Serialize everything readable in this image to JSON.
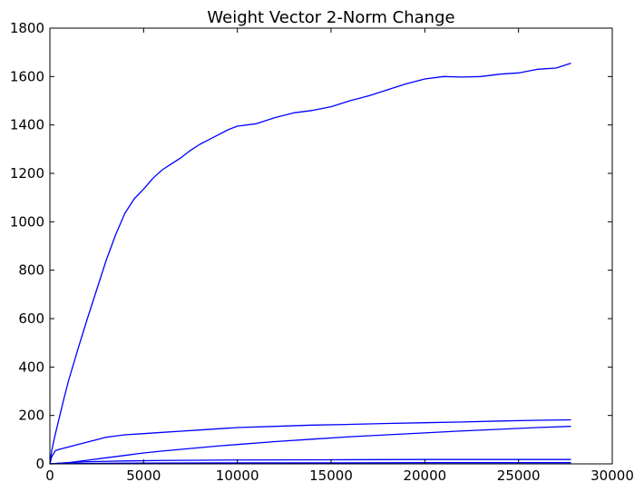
{
  "chart_data": {
    "type": "line",
    "title": "Weight Vector 2-Norm Change",
    "xlabel": "",
    "ylabel": "",
    "xlim": [
      0,
      30000
    ],
    "ylim": [
      0,
      1800
    ],
    "xticks": [
      "0",
      "5000",
      "10000",
      "15000",
      "20000",
      "25000",
      "30000"
    ],
    "yticks": [
      "0",
      "200",
      "400",
      "600",
      "800",
      "1000",
      "1200",
      "1400",
      "1600",
      "1800"
    ],
    "grid": false,
    "legend": "none",
    "series_color": "#0000ff",
    "series": [
      {
        "x": [
          0,
          100,
          250,
          500,
          750,
          1000,
          1500,
          2000,
          2500,
          3000,
          3500,
          4000,
          4500,
          5000,
          5500,
          6000,
          6500,
          7000,
          7500,
          8000,
          8500,
          9000,
          9500,
          10000,
          11000,
          12000,
          13000,
          14000,
          15000,
          16000,
          17000,
          18000,
          19000,
          20000,
          21000,
          22000,
          23000,
          24000,
          25000,
          26000,
          27000,
          27800
        ],
        "y": [
          0,
          55,
          110,
          190,
          270,
          345,
          475,
          600,
          720,
          840,
          945,
          1035,
          1095,
          1135,
          1180,
          1215,
          1240,
          1265,
          1295,
          1320,
          1340,
          1360,
          1380,
          1395,
          1405,
          1430,
          1450,
          1460,
          1475,
          1500,
          1520,
          1545,
          1570,
          1590,
          1600,
          1598,
          1600,
          1610,
          1615,
          1630,
          1635,
          1655
        ]
      },
      {
        "x": [
          0,
          100,
          300,
          500,
          1000,
          1500,
          2000,
          2500,
          3000,
          4000,
          5000,
          6000,
          7000,
          8000,
          9000,
          10000,
          12000,
          14000,
          16000,
          18000,
          20000,
          22000,
          24000,
          26000,
          27800
        ],
        "y": [
          0,
          30,
          55,
          60,
          70,
          80,
          90,
          100,
          110,
          120,
          125,
          130,
          135,
          140,
          145,
          150,
          155,
          160,
          163,
          167,
          170,
          173,
          177,
          180,
          182
        ]
      },
      {
        "x": [
          0,
          1000,
          2000,
          3000,
          4000,
          5000,
          6000,
          7000,
          8000,
          9000,
          10000,
          12000,
          14000,
          16000,
          18000,
          20000,
          22000,
          24000,
          26000,
          27800
        ],
        "y": [
          0,
          5,
          15,
          25,
          35,
          45,
          53,
          60,
          67,
          74,
          80,
          92,
          102,
          112,
          120,
          128,
          136,
          143,
          150,
          155
        ]
      },
      {
        "x": [
          0,
          1000,
          2000,
          4000,
          6000,
          8000,
          10000,
          15000,
          20000,
          25000,
          27800
        ],
        "y": [
          0,
          5,
          9,
          12,
          14,
          15,
          16,
          17,
          18,
          18,
          18
        ]
      },
      {
        "x": [
          0,
          2000,
          5000,
          10000,
          15000,
          20000,
          25000,
          27800
        ],
        "y": [
          0,
          2,
          3,
          4,
          4,
          5,
          5,
          5
        ]
      }
    ]
  }
}
